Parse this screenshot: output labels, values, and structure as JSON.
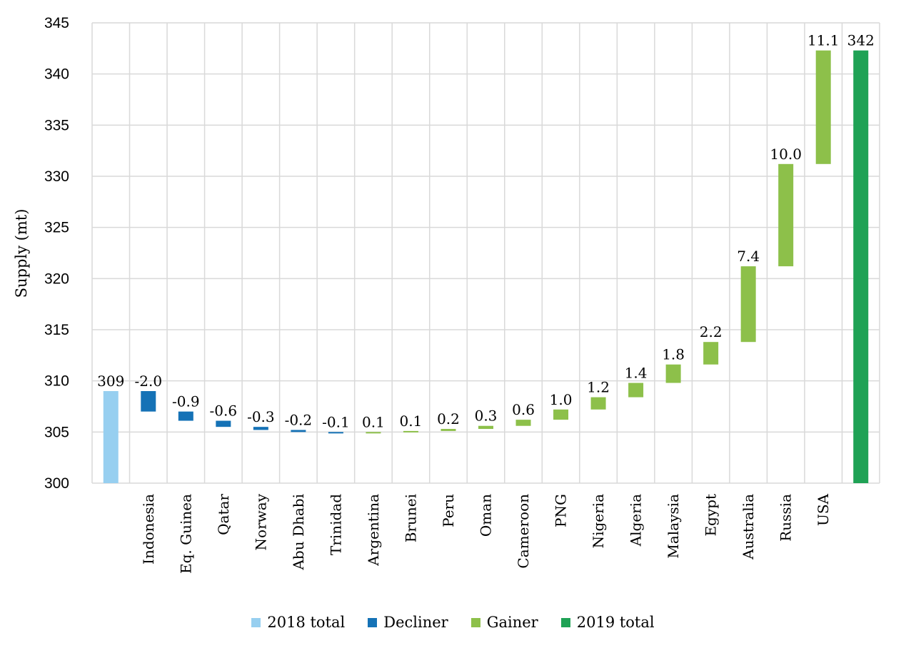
{
  "chart_data": {
    "type": "bar",
    "subtype": "waterfall",
    "ylabel": "Supply (mt)",
    "ylim": [
      300,
      345
    ],
    "yticks": [
      300,
      305,
      310,
      315,
      320,
      325,
      330,
      335,
      340,
      345
    ],
    "grid": true,
    "legend_position": "bottom",
    "colors": {
      "2018 total": "#97cff0",
      "Decliner": "#1572b6",
      "Gainer": "#8dc04a",
      "2019 total": "#1fa255"
    },
    "legend": [
      "2018 total",
      "Decliner",
      "Gainer",
      "2019 total"
    ],
    "bars": [
      {
        "category": "",
        "kind": "2018 total",
        "value": 309,
        "label": "309"
      },
      {
        "category": "Indonesia",
        "kind": "Decliner",
        "value": -2.0,
        "label": "-2.0"
      },
      {
        "category": "Eq. Guinea",
        "kind": "Decliner",
        "value": -0.9,
        "label": "-0.9"
      },
      {
        "category": "Qatar",
        "kind": "Decliner",
        "value": -0.6,
        "label": "-0.6"
      },
      {
        "category": "Norway",
        "kind": "Decliner",
        "value": -0.3,
        "label": "-0.3"
      },
      {
        "category": "Abu Dhabi",
        "kind": "Decliner",
        "value": -0.2,
        "label": "-0.2"
      },
      {
        "category": "Trinidad",
        "kind": "Decliner",
        "value": -0.1,
        "label": "-0.1"
      },
      {
        "category": "Argentina",
        "kind": "Gainer",
        "value": 0.1,
        "label": "0.1"
      },
      {
        "category": "Brunei",
        "kind": "Gainer",
        "value": 0.1,
        "label": "0.1"
      },
      {
        "category": "Peru",
        "kind": "Gainer",
        "value": 0.2,
        "label": "0.2"
      },
      {
        "category": "Oman",
        "kind": "Gainer",
        "value": 0.3,
        "label": "0.3"
      },
      {
        "category": "Cameroon",
        "kind": "Gainer",
        "value": 0.6,
        "label": "0.6"
      },
      {
        "category": "PNG",
        "kind": "Gainer",
        "value": 1.0,
        "label": "1.0"
      },
      {
        "category": "Nigeria",
        "kind": "Gainer",
        "value": 1.2,
        "label": "1.2"
      },
      {
        "category": "Algeria",
        "kind": "Gainer",
        "value": 1.4,
        "label": "1.4"
      },
      {
        "category": "Malaysia",
        "kind": "Gainer",
        "value": 1.8,
        "label": "1.8"
      },
      {
        "category": "Egypt",
        "kind": "Gainer",
        "value": 2.2,
        "label": "2.2"
      },
      {
        "category": "Australia",
        "kind": "Gainer",
        "value": 7.4,
        "label": "7.4"
      },
      {
        "category": "Russia",
        "kind": "Gainer",
        "value": 10.0,
        "label": "10.0"
      },
      {
        "category": "USA",
        "kind": "Gainer",
        "value": 11.1,
        "label": "11.1"
      },
      {
        "category": "",
        "kind": "2019 total",
        "value": 342.3,
        "label": "342"
      }
    ]
  }
}
